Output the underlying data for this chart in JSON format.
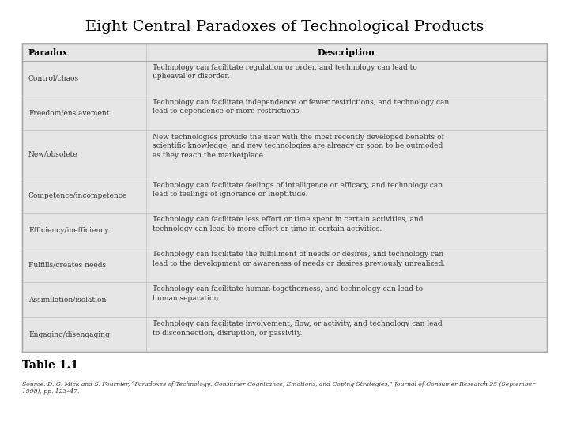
{
  "title": "Eight Central Paradoxes of Technological Products",
  "title_fontsize": 14,
  "background_color": "#ffffff",
  "table_bg_color": "#e6e6e6",
  "header_text_color": "#000000",
  "cell_text_color": "#333333",
  "col1_header": "Paradox",
  "col2_header": "Description",
  "rows": [
    {
      "paradox": "Control/chaos",
      "description": "Technology can facilitate regulation or order, and technology can lead to\nupheaval or disorder."
    },
    {
      "paradox": "Freedom/enslavement",
      "description": "Technology can facilitate independence or fewer restrictions, and technology can\nlead to dependence or more restrictions."
    },
    {
      "paradox": "New/obsolete",
      "description": "New technologies provide the user with the most recently developed benefits of\nscientific knowledge, and new technologies are already or soon to be outmoded\nas they reach the marketplace."
    },
    {
      "paradox": "Competence/incompetence",
      "description": "Technology can facilitate feelings of intelligence or efficacy, and technology can\nlead to feelings of ignorance or ineptitude."
    },
    {
      "paradox": "Efficiency/inefficiency",
      "description": "Technology can facilitate less effort or time spent in certain activities, and\ntechnology can lead to more effort or time in certain activities."
    },
    {
      "paradox": "Fulfills/creates needs",
      "description": "Technology can facilitate the fulfillment of needs or desires, and technology can\nlead to the development or awareness of needs or desires previously unrealized."
    },
    {
      "paradox": "Assimilation/isolation",
      "description": "Technology can facilitate human togetherness, and technology can lead to\nhuman separation."
    },
    {
      "paradox": "Engaging/disengaging",
      "description": "Technology can facilitate involvement, flow, or activity, and technology can lead\nto disconnection, disruption, or passivity."
    }
  ],
  "table_label": "Table 1.1",
  "source_text": "Source: D. G. Mick and S. Fournier, “Paradoxes of Technology: Consumer Cognizance, Emotions, and Coping Strategies,” Journal of Consumer Research 25 (September\n1998), pp. 123–47."
}
